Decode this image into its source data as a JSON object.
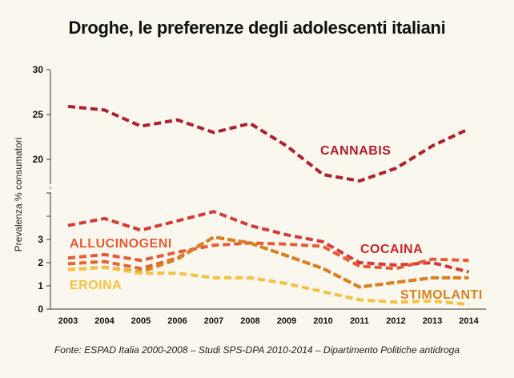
{
  "title": "Droghe, le preferenze degli adolescenti italiani",
  "source": "Fonte: ESPAD Italia 2000-2008 – Studi SPS-DPA 2010-2014 – Dipartimento Politiche antidroga",
  "chart_data": {
    "type": "line",
    "title": "Droghe, le preferenze degli adolescenti italiani",
    "xlabel": "",
    "ylabel": "Prevalenza % consumatori",
    "y_axis_break": "between 5 and 20 (axis drawn discontinuous)",
    "y_ticks": [
      0,
      1,
      2,
      3,
      4,
      5,
      20,
      25,
      30
    ],
    "y_tick_labels": [
      "0",
      "1",
      "2",
      "3",
      "",
      "",
      "20",
      "25",
      "30"
    ],
    "x": [
      2003,
      2004,
      2005,
      2006,
      2007,
      2008,
      2009,
      2010,
      2011,
      2012,
      2013,
      2014
    ],
    "grid": false,
    "series": [
      {
        "name": "CANNABIS",
        "color": "#b01e2f",
        "values": [
          25.9,
          25.5,
          23.7,
          24.4,
          23.0,
          24.0,
          21.5,
          18.3,
          17.6,
          19.0,
          21.5,
          23.4
        ]
      },
      {
        "name": "",
        "color": "#d63a36",
        "values": [
          3.6,
          3.9,
          3.4,
          3.8,
          4.2,
          3.6,
          3.2,
          2.9,
          2.0,
          1.9,
          2.0,
          1.6
        ]
      },
      {
        "name": "COCAINA",
        "color": "#e85a35",
        "values": [
          2.2,
          2.35,
          2.1,
          2.45,
          2.75,
          2.85,
          2.8,
          2.7,
          1.85,
          1.75,
          2.15,
          2.1
        ]
      },
      {
        "name": "ALLUCINOGENI",
        "color": "#e3652f",
        "values": [
          1.95,
          2.05,
          1.75,
          2.2,
          3.1,
          2.85,
          2.3,
          1.75,
          0.95,
          1.15,
          1.35,
          1.35
        ]
      },
      {
        "name": "STIMOLANTI",
        "color": "#d9821f",
        "values": [
          1.7,
          1.8,
          1.6,
          2.15,
          3.1,
          2.85,
          2.3,
          1.75,
          0.95,
          1.15,
          1.35,
          1.35
        ]
      },
      {
        "name": "EROINA",
        "color": "#f7c13e",
        "values": [
          1.7,
          1.8,
          1.55,
          1.55,
          1.35,
          1.35,
          1.1,
          0.75,
          0.4,
          0.3,
          0.35,
          0.2
        ]
      }
    ],
    "labels": [
      {
        "text": "CANNABIS",
        "color": "#b01e2f"
      },
      {
        "text": "COCAINA",
        "color": "#c9262d"
      },
      {
        "text": "ALLUCINOGENI",
        "color": "#e85a35"
      },
      {
        "text": "STIMOLANTI",
        "color": "#d9821f"
      },
      {
        "text": "EROINA",
        "color": "#f7c13e"
      }
    ]
  }
}
